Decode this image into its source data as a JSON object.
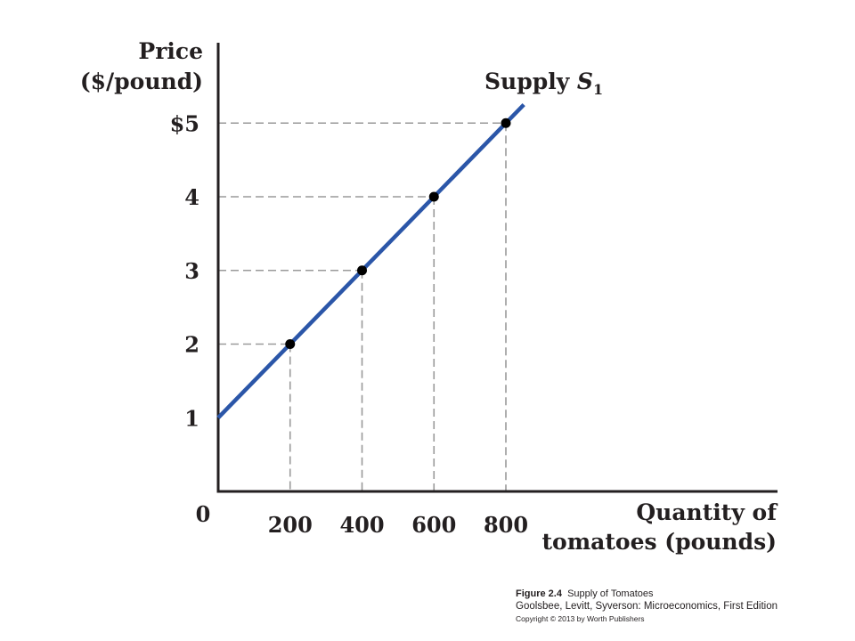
{
  "chart_data": {
    "type": "line",
    "ylabel_lines": [
      "Price",
      "($/pound)"
    ],
    "xlabel_lines": [
      "Quantity of",
      "tomatoes (pounds)"
    ],
    "origin_label": "0",
    "xlim": [
      0,
      800
    ],
    "ylim": [
      0,
      5
    ],
    "x_ticks": [
      {
        "value": 200,
        "label": "200"
      },
      {
        "value": 400,
        "label": "400"
      },
      {
        "value": 600,
        "label": "600"
      },
      {
        "value": 800,
        "label": "800"
      }
    ],
    "y_ticks": [
      {
        "value": 1,
        "label": "1"
      },
      {
        "value": 2,
        "label": "2"
      },
      {
        "value": 3,
        "label": "3"
      },
      {
        "value": 4,
        "label": "4"
      },
      {
        "value": 5,
        "label": "$5"
      }
    ],
    "series": [
      {
        "name_main": "Supply ",
        "name_italic": "S",
        "name_sub": "1",
        "line": {
          "x_start": 0,
          "y_start": 1,
          "x_end": 850,
          "y_end": 5.25
        },
        "points": [
          {
            "x": 200,
            "y": 2
          },
          {
            "x": 400,
            "y": 3
          },
          {
            "x": 600,
            "y": 4
          },
          {
            "x": 800,
            "y": 5
          }
        ]
      }
    ],
    "guides": "dashed",
    "colors": {
      "line": "#2b56a8",
      "axis": "#231f20",
      "guide": "#9a9a9a",
      "point": "#000000"
    }
  },
  "caption": {
    "figure_number": "Figure 2.4",
    "figure_title": "Supply of Tomatoes",
    "source": "Goolsbee, Levitt, Syverson: Microeconomics, First Edition",
    "copyright": "Copyright © 2013 by Worth Publishers"
  }
}
